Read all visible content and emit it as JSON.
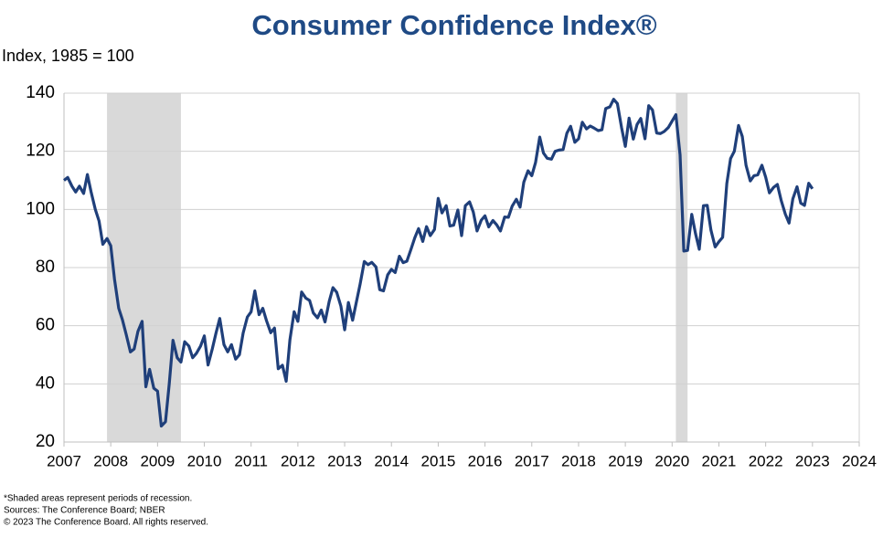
{
  "chart_data": {
    "type": "line",
    "title": "Consumer Confidence Index®",
    "y_label": "Index, 1985 = 100",
    "footnotes": [
      "*Shaded areas represent periods of recession.",
      "Sources: The Conference Board; NBER",
      "© 2023 The Conference Board. All rights reserved."
    ],
    "xlim": [
      2007,
      2024
    ],
    "xticks": [
      2007,
      2008,
      2009,
      2010,
      2011,
      2012,
      2013,
      2014,
      2015,
      2016,
      2017,
      2018,
      2019,
      2020,
      2021,
      2022,
      2023,
      2024
    ],
    "ylim": [
      20,
      140
    ],
    "yticks": [
      20,
      40,
      60,
      80,
      100,
      120,
      140
    ],
    "grid": true,
    "recessions": [
      [
        2007.92,
        2009.5
      ],
      [
        2020.08,
        2020.33
      ]
    ],
    "recession_color": "#d9d9d9",
    "x": [
      2007.0,
      2007.08,
      2007.17,
      2007.25,
      2007.33,
      2007.42,
      2007.5,
      2007.58,
      2007.67,
      2007.75,
      2007.83,
      2007.92,
      2008.0,
      2008.08,
      2008.17,
      2008.25,
      2008.33,
      2008.42,
      2008.5,
      2008.58,
      2008.67,
      2008.75,
      2008.83,
      2008.92,
      2009.0,
      2009.08,
      2009.17,
      2009.25,
      2009.33,
      2009.42,
      2009.5,
      2009.58,
      2009.67,
      2009.75,
      2009.83,
      2009.92,
      2010.0,
      2010.08,
      2010.17,
      2010.25,
      2010.33,
      2010.42,
      2010.5,
      2010.58,
      2010.67,
      2010.75,
      2010.83,
      2010.92,
      2011.0,
      2011.08,
      2011.17,
      2011.25,
      2011.33,
      2011.42,
      2011.5,
      2011.58,
      2011.67,
      2011.75,
      2011.83,
      2011.92,
      2012.0,
      2012.08,
      2012.17,
      2012.25,
      2012.33,
      2012.42,
      2012.5,
      2012.58,
      2012.67,
      2012.75,
      2012.83,
      2012.92,
      2013.0,
      2013.08,
      2013.17,
      2013.25,
      2013.33,
      2013.42,
      2013.5,
      2013.58,
      2013.67,
      2013.75,
      2013.83,
      2013.92,
      2014.0,
      2014.08,
      2014.17,
      2014.25,
      2014.33,
      2014.42,
      2014.5,
      2014.58,
      2014.67,
      2014.75,
      2014.83,
      2014.92,
      2015.0,
      2015.08,
      2015.17,
      2015.25,
      2015.33,
      2015.42,
      2015.5,
      2015.58,
      2015.67,
      2015.75,
      2015.83,
      2015.92,
      2016.0,
      2016.08,
      2016.17,
      2016.25,
      2016.33,
      2016.42,
      2016.5,
      2016.58,
      2016.67,
      2016.75,
      2016.83,
      2016.92,
      2017.0,
      2017.08,
      2017.17,
      2017.25,
      2017.33,
      2017.42,
      2017.5,
      2017.58,
      2017.67,
      2017.75,
      2017.83,
      2017.92,
      2018.0,
      2018.08,
      2018.17,
      2018.25,
      2018.33,
      2018.42,
      2018.5,
      2018.58,
      2018.67,
      2018.75,
      2018.83,
      2018.92,
      2019.0,
      2019.08,
      2019.17,
      2019.25,
      2019.33,
      2019.42,
      2019.5,
      2019.58,
      2019.67,
      2019.75,
      2019.83,
      2019.92,
      2020.0,
      2020.08,
      2020.17,
      2020.25,
      2020.33,
      2020.42,
      2020.5,
      2020.58,
      2020.67,
      2020.75,
      2020.83,
      2020.92,
      2021.0,
      2021.08,
      2021.17,
      2021.25,
      2021.33,
      2021.42,
      2021.5,
      2021.58,
      2021.67,
      2021.75,
      2021.83,
      2021.92,
      2022.0,
      2022.08,
      2022.17,
      2022.25,
      2022.33,
      2022.42,
      2022.5,
      2022.58,
      2022.67,
      2022.75,
      2022.83,
      2022.92,
      2023.0
    ],
    "series": [
      {
        "color": "#1f3f7a",
        "values": [
          110,
          111,
          108,
          106,
          108,
          105.5,
          112,
          106,
          100,
          96,
          88,
          90,
          87.5,
          76,
          66,
          62,
          57,
          51,
          52,
          58,
          61.5,
          39,
          45,
          38.5,
          37.5,
          25.5,
          27,
          40,
          55,
          49,
          47.5,
          54.5,
          53,
          49,
          50.5,
          53,
          56.5,
          46.5,
          52,
          57.5,
          62.5,
          53.5,
          51,
          53.5,
          48.5,
          50,
          57.5,
          63,
          64.8,
          72,
          63.8,
          66,
          61.7,
          57.6,
          59.2,
          45.2,
          46.4,
          40.9,
          55.2,
          64.8,
          61.5,
          71.6,
          69.5,
          68.7,
          64.4,
          62.7,
          65.4,
          61.3,
          68.4,
          73.1,
          71.5,
          66.7,
          58.6,
          68,
          61.9,
          68.1,
          74.3,
          82.1,
          81,
          81.8,
          80.2,
          72.4,
          72,
          77.5,
          79.4,
          78.3,
          83.9,
          81.7,
          82.2,
          86.4,
          90.3,
          93.4,
          89,
          94.1,
          91,
          93.1,
          103.8,
          98.8,
          101.3,
          94.3,
          94.6,
          99.8,
          91,
          101.3,
          102.6,
          99.1,
          92.6,
          96.3,
          97.8,
          94,
          96.2,
          94.7,
          92.6,
          97.4,
          97.3,
          101.1,
          103.5,
          100.8,
          109.4,
          113.3,
          111.6,
          116.1,
          124.9,
          119.4,
          117.6,
          117.3,
          120,
          120.4,
          120.6,
          126.2,
          128.6,
          123.1,
          124.3,
          130,
          127.7,
          128.7,
          128,
          127.1,
          127.4,
          134.7,
          135.3,
          137.9,
          136.4,
          128.1,
          121.7,
          131.4,
          124.2,
          129.2,
          131.3,
          124.3,
          135.7,
          134.2,
          126.3,
          126.1,
          126.8,
          128.2,
          130.4,
          132.6,
          118.8,
          85.7,
          85.9,
          98.3,
          91.7,
          86.3,
          101.3,
          101.4,
          92.9,
          87.1,
          88.9,
          90.4,
          109,
          117.5,
          120,
          128.9,
          125.1,
          115.2,
          109.8,
          111.6,
          111.9,
          115.2,
          111.1,
          105.7,
          107.6,
          108.6,
          103.2,
          98.4,
          95.3,
          103.6,
          107.8,
          102.2,
          101.4,
          109,
          107.1
        ]
      }
    ]
  }
}
